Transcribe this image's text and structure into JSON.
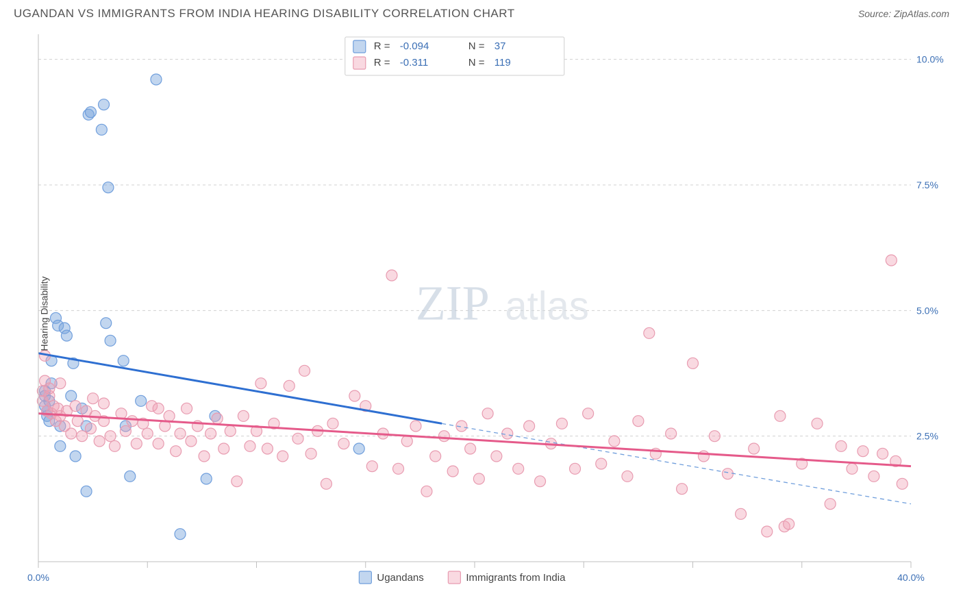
{
  "title": "UGANDAN VS IMMIGRANTS FROM INDIA HEARING DISABILITY CORRELATION CHART",
  "source_label": "Source: ZipAtlas.com",
  "ylabel": "Hearing Disability",
  "watermark": {
    "z": "ZIP",
    "rest": "atlas"
  },
  "chart": {
    "type": "scatter",
    "background_color": "#ffffff",
    "grid_color": "#d0d0d0",
    "axis_color": "#bfbfbf",
    "xlim": [
      0,
      40
    ],
    "ylim": [
      0,
      10.5
    ],
    "x_ticks_at": [
      0,
      5,
      10,
      15,
      20,
      25,
      30,
      35,
      40
    ],
    "x_tick_labels": {
      "0": "0.0%",
      "40": "40.0%"
    },
    "y_gridlines": [
      2.5,
      5.0,
      7.5,
      10.0
    ],
    "y_tick_labels": {
      "2.5": "2.5%",
      "5.0": "5.0%",
      "7.5": "7.5%",
      "10.0": "10.0%"
    },
    "marker_radius": 8,
    "series": [
      {
        "id": "ugandans",
        "label": "Ugandans",
        "fill_color": "rgba(120,165,220,0.45)",
        "stroke_color": "#6f9edc",
        "R": "-0.094",
        "N": "37",
        "trend_solid": {
          "x1": 0,
          "y1": 4.15,
          "x2": 18.5,
          "y2": 2.75
        },
        "trend_dashed": {
          "x1": 18.5,
          "y1": 2.75,
          "x2": 40,
          "y2": 1.15
        },
        "points": [
          [
            0.3,
            3.1
          ],
          [
            0.3,
            3.3
          ],
          [
            0.3,
            3.4
          ],
          [
            0.4,
            2.9
          ],
          [
            0.4,
            3.0
          ],
          [
            0.5,
            3.2
          ],
          [
            0.5,
            2.8
          ],
          [
            0.6,
            4.0
          ],
          [
            0.8,
            4.85
          ],
          [
            0.9,
            4.7
          ],
          [
            1.0,
            2.7
          ],
          [
            1.0,
            2.3
          ],
          [
            1.2,
            4.65
          ],
          [
            1.3,
            4.5
          ],
          [
            1.5,
            3.3
          ],
          [
            1.6,
            3.95
          ],
          [
            1.7,
            2.1
          ],
          [
            2.0,
            3.05
          ],
          [
            2.2,
            1.4
          ],
          [
            2.2,
            2.7
          ],
          [
            2.3,
            8.9
          ],
          [
            2.4,
            8.95
          ],
          [
            2.9,
            8.6
          ],
          [
            3.0,
            9.1
          ],
          [
            3.1,
            4.75
          ],
          [
            3.2,
            7.45
          ],
          [
            3.3,
            4.4
          ],
          [
            3.9,
            4.0
          ],
          [
            4.0,
            2.7
          ],
          [
            4.2,
            1.7
          ],
          [
            4.7,
            3.2
          ],
          [
            5.4,
            9.6
          ],
          [
            6.5,
            0.55
          ],
          [
            7.7,
            1.65
          ],
          [
            8.1,
            2.9
          ],
          [
            14.7,
            2.25
          ],
          [
            0.6,
            3.55
          ]
        ]
      },
      {
        "id": "india",
        "label": "Immigrants from India",
        "fill_color": "rgba(240,160,180,0.40)",
        "stroke_color": "#e89bb0",
        "R": "-0.311",
        "N": "119",
        "trend_solid": {
          "x1": 0,
          "y1": 2.95,
          "x2": 40,
          "y2": 1.9
        },
        "trend_dashed": null,
        "points": [
          [
            0.2,
            3.2
          ],
          [
            0.2,
            3.4
          ],
          [
            0.3,
            3.6
          ],
          [
            0.4,
            3.0
          ],
          [
            0.5,
            3.3
          ],
          [
            0.5,
            3.45
          ],
          [
            0.6,
            2.95
          ],
          [
            0.7,
            3.1
          ],
          [
            0.8,
            2.8
          ],
          [
            0.9,
            3.05
          ],
          [
            1.0,
            2.9
          ],
          [
            1.2,
            2.7
          ],
          [
            1.3,
            3.0
          ],
          [
            1.5,
            2.55
          ],
          [
            1.7,
            3.1
          ],
          [
            1.8,
            2.8
          ],
          [
            2.0,
            2.5
          ],
          [
            2.2,
            3.0
          ],
          [
            2.4,
            2.65
          ],
          [
            2.6,
            2.9
          ],
          [
            2.8,
            2.4
          ],
          [
            3.0,
            2.8
          ],
          [
            3.0,
            3.15
          ],
          [
            3.3,
            2.5
          ],
          [
            3.5,
            2.3
          ],
          [
            3.8,
            2.95
          ],
          [
            4.0,
            2.6
          ],
          [
            4.3,
            2.8
          ],
          [
            4.5,
            2.35
          ],
          [
            4.8,
            2.75
          ],
          [
            5.0,
            2.55
          ],
          [
            5.2,
            3.1
          ],
          [
            5.5,
            2.35
          ],
          [
            5.8,
            2.7
          ],
          [
            6.0,
            2.9
          ],
          [
            6.3,
            2.2
          ],
          [
            6.5,
            2.55
          ],
          [
            6.8,
            3.05
          ],
          [
            7.0,
            2.4
          ],
          [
            7.3,
            2.7
          ],
          [
            7.6,
            2.1
          ],
          [
            7.9,
            2.55
          ],
          [
            8.2,
            2.85
          ],
          [
            8.5,
            2.25
          ],
          [
            8.8,
            2.6
          ],
          [
            9.1,
            1.6
          ],
          [
            9.4,
            2.9
          ],
          [
            9.7,
            2.3
          ],
          [
            10.0,
            2.6
          ],
          [
            10.2,
            3.55
          ],
          [
            10.5,
            2.25
          ],
          [
            10.8,
            2.75
          ],
          [
            11.2,
            2.1
          ],
          [
            11.5,
            3.5
          ],
          [
            11.9,
            2.45
          ],
          [
            12.2,
            3.8
          ],
          [
            12.5,
            2.15
          ],
          [
            12.8,
            2.6
          ],
          [
            13.2,
            1.55
          ],
          [
            13.5,
            2.75
          ],
          [
            14.0,
            2.35
          ],
          [
            14.5,
            3.3
          ],
          [
            15.0,
            3.1
          ],
          [
            15.3,
            1.9
          ],
          [
            15.8,
            2.55
          ],
          [
            16.2,
            5.7
          ],
          [
            16.5,
            1.85
          ],
          [
            16.9,
            2.4
          ],
          [
            17.3,
            2.7
          ],
          [
            17.8,
            1.4
          ],
          [
            18.2,
            2.1
          ],
          [
            18.6,
            2.5
          ],
          [
            19.0,
            1.8
          ],
          [
            19.4,
            2.7
          ],
          [
            19.8,
            2.25
          ],
          [
            20.2,
            1.65
          ],
          [
            20.6,
            2.95
          ],
          [
            21.0,
            2.1
          ],
          [
            21.5,
            2.55
          ],
          [
            22.0,
            1.85
          ],
          [
            22.5,
            2.7
          ],
          [
            23.0,
            1.6
          ],
          [
            23.5,
            2.35
          ],
          [
            24.0,
            2.75
          ],
          [
            24.6,
            1.85
          ],
          [
            25.2,
            2.95
          ],
          [
            25.8,
            1.95
          ],
          [
            26.4,
            2.4
          ],
          [
            27.0,
            1.7
          ],
          [
            27.5,
            2.8
          ],
          [
            28.0,
            4.55
          ],
          [
            28.3,
            2.15
          ],
          [
            29.0,
            2.55
          ],
          [
            29.5,
            1.45
          ],
          [
            30.0,
            3.95
          ],
          [
            30.5,
            2.1
          ],
          [
            31.0,
            2.5
          ],
          [
            31.6,
            1.75
          ],
          [
            32.2,
            0.95
          ],
          [
            32.8,
            2.25
          ],
          [
            33.4,
            0.6
          ],
          [
            34.0,
            2.9
          ],
          [
            34.2,
            0.7
          ],
          [
            34.4,
            0.75
          ],
          [
            35.0,
            1.95
          ],
          [
            35.7,
            2.75
          ],
          [
            36.3,
            1.15
          ],
          [
            36.8,
            2.3
          ],
          [
            37.3,
            1.85
          ],
          [
            37.8,
            2.2
          ],
          [
            38.3,
            1.7
          ],
          [
            38.7,
            2.15
          ],
          [
            39.1,
            6.0
          ],
          [
            39.3,
            2.0
          ],
          [
            39.6,
            1.55
          ],
          [
            0.3,
            4.1
          ],
          [
            1.0,
            3.55
          ],
          [
            2.5,
            3.25
          ],
          [
            5.5,
            3.05
          ]
        ]
      }
    ],
    "stats_legend": {
      "r_label": "R =",
      "n_label": "N ="
    },
    "bottom_legend": {
      "swatch_size": 16
    }
  }
}
